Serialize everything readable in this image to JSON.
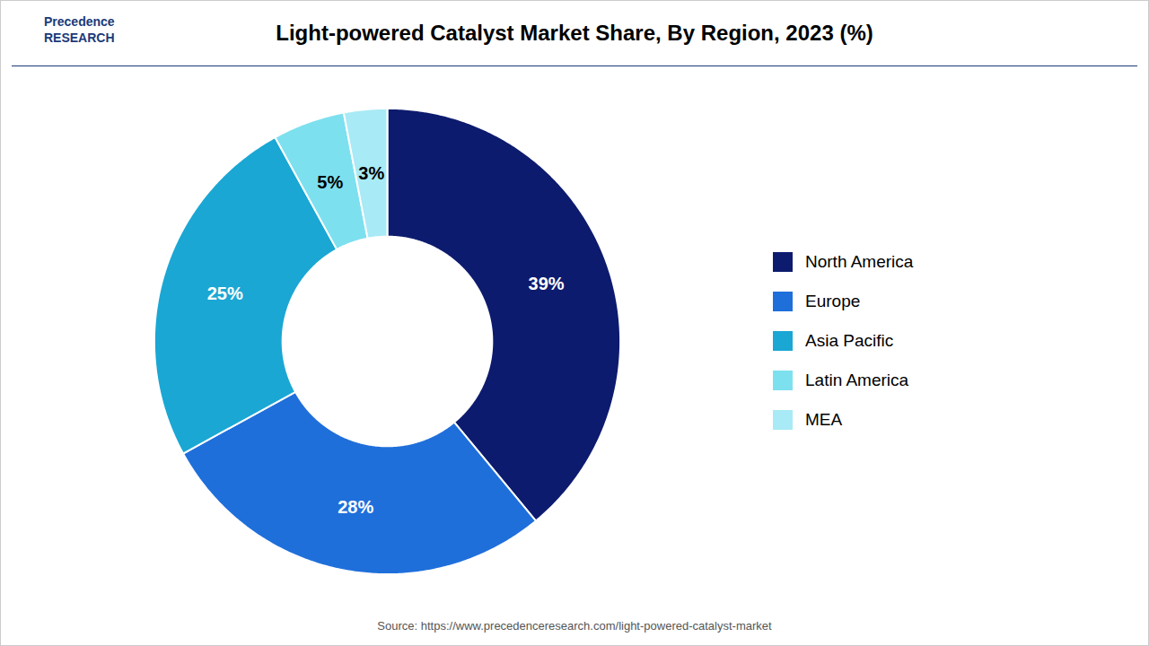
{
  "chart_data": {
    "type": "donut",
    "title": "Light-powered Catalyst Market Share, By Region, 2023 (%)",
    "categories": [
      "North America",
      "Europe",
      "Asia Pacific",
      "Latin America",
      "MEA"
    ],
    "values": [
      39,
      28,
      25,
      5,
      3
    ],
    "value_labels": [
      "39%",
      "28%",
      "25%",
      "5%",
      "3%"
    ],
    "colors": [
      "#0d1b6e",
      "#1f6fdb",
      "#1aa7d4",
      "#7de0ef",
      "#a8eaf5"
    ],
    "data_labels": true,
    "legend": "right",
    "source": "Source: https://www.precedenceresearch.com/light-powered-catalyst-market",
    "annotations": [
      "Precedence\nRESEARCH"
    ]
  }
}
